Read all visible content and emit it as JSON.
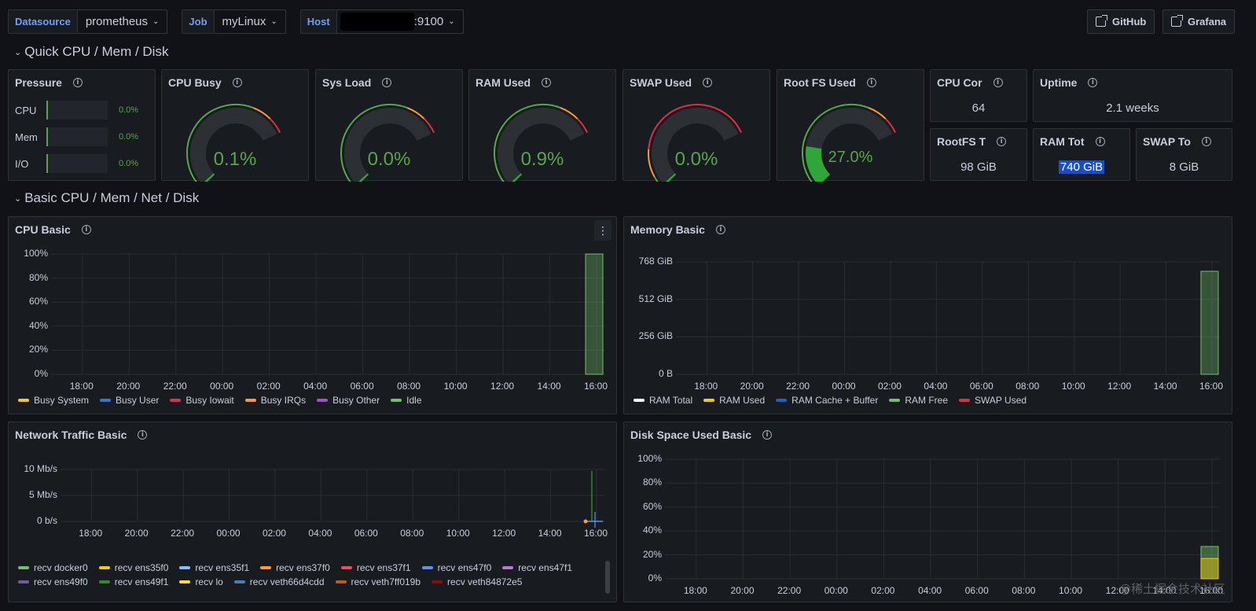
{
  "variables": [
    {
      "label": "Datasource",
      "value": "prometheus"
    },
    {
      "label": "Job",
      "value": "myLinux"
    },
    {
      "label": "Host",
      "value": ":9100"
    }
  ],
  "links": {
    "github": "GitHub",
    "grafana": "Grafana"
  },
  "rows": {
    "quick": "Quick CPU / Mem / Disk",
    "basic": "Basic CPU / Mem / Net / Disk"
  },
  "pressure": {
    "title": "Pressure",
    "items": [
      {
        "label": "CPU",
        "value": "0.0%"
      },
      {
        "label": "Mem",
        "value": "0.0%"
      },
      {
        "label": "I/O",
        "value": "0.0%"
      }
    ]
  },
  "gauges": [
    {
      "title": "CPU Busy",
      "value": "0.1%",
      "percent": 0.1
    },
    {
      "title": "Sys Load",
      "value": "0.0%",
      "percent": 0.0
    },
    {
      "title": "RAM Used",
      "value": "0.9%",
      "percent": 0.9
    },
    {
      "title": "SWAP Used",
      "value": "0.0%",
      "percent": 0.0
    },
    {
      "title": "Root FS Used",
      "value": "27.0%",
      "percent": 27.0
    }
  ],
  "stats": {
    "cpu_cores": {
      "title": "CPU Cor",
      "value": "64"
    },
    "uptime": {
      "title": "Uptime",
      "value": "2.1 weeks"
    },
    "rootfs_total": {
      "title": "RootFS T",
      "value": "98 GiB"
    },
    "ram_total": {
      "title": "RAM Tot",
      "value": "740 GiB"
    },
    "swap_total": {
      "title": "SWAP To",
      "value": "8 GiB"
    }
  },
  "colors": {
    "green": "#56a64b",
    "yellow": "#f2cc0c",
    "red": "#e02f44",
    "blue": "#3274d9",
    "orange": "#ff9830",
    "purple": "#a352cc"
  },
  "chart_data": [
    {
      "type": "area",
      "title": "CPU Basic",
      "x": [
        "18:00",
        "20:00",
        "22:00",
        "00:00",
        "02:00",
        "04:00",
        "06:00",
        "08:00",
        "10:00",
        "12:00",
        "14:00",
        "16:00"
      ],
      "y_ticks": [
        "100%",
        "80%",
        "60%",
        "40%",
        "20%",
        "0%"
      ],
      "ylim": [
        0,
        100
      ],
      "series": [
        {
          "name": "Busy System",
          "color": "#f2cc0c"
        },
        {
          "name": "Busy User",
          "color": "#3274d9"
        },
        {
          "name": "Busy Iowait",
          "color": "#e02f44"
        },
        {
          "name": "Busy IRQs",
          "color": "#ff9830"
        },
        {
          "name": "Busy Other",
          "color": "#a352cc"
        },
        {
          "name": "Idle",
          "color": "#73bf69",
          "last_value": 100
        }
      ]
    },
    {
      "type": "area",
      "title": "Memory Basic",
      "x": [
        "18:00",
        "20:00",
        "22:00",
        "00:00",
        "02:00",
        "04:00",
        "06:00",
        "08:00",
        "10:00",
        "12:00",
        "14:00",
        "16:00"
      ],
      "y_ticks": [
        "768 GiB",
        "512 GiB",
        "256 GiB",
        "0 B"
      ],
      "series": [
        {
          "name": "RAM Total",
          "color": "#ffffff"
        },
        {
          "name": "RAM Used",
          "color": "#f2cc0c"
        },
        {
          "name": "RAM Cache + Buffer",
          "color": "#1f60c4"
        },
        {
          "name": "RAM Free",
          "color": "#73bf69",
          "last_value": 733
        },
        {
          "name": "SWAP Used",
          "color": "#e02f44"
        }
      ]
    },
    {
      "type": "line",
      "title": "Network Traffic Basic",
      "x": [
        "18:00",
        "20:00",
        "22:00",
        "00:00",
        "02:00",
        "04:00",
        "06:00",
        "08:00",
        "10:00",
        "12:00",
        "14:00",
        "16:00"
      ],
      "y_ticks": [
        "10 Mb/s",
        "5 Mb/s",
        "0 b/s"
      ],
      "series": [
        {
          "name": "recv docker0",
          "color": "#73bf69"
        },
        {
          "name": "recv ens35f0",
          "color": "#f2cc0c"
        },
        {
          "name": "recv ens35f1",
          "color": "#8ab8ff"
        },
        {
          "name": "recv ens37f0",
          "color": "#ff9830"
        },
        {
          "name": "recv ens37f1",
          "color": "#f2495c"
        },
        {
          "name": "recv ens47f0",
          "color": "#5794f2"
        },
        {
          "name": "recv ens47f1",
          "color": "#b877d9"
        },
        {
          "name": "recv ens49f0",
          "color": "#705da0"
        },
        {
          "name": "recv ens49f1",
          "color": "#37872d"
        },
        {
          "name": "recv lo",
          "color": "#fade2a"
        },
        {
          "name": "recv veth66d4cdd",
          "color": "#447ebc"
        },
        {
          "name": "recv veth7ff019b",
          "color": "#c15c17"
        },
        {
          "name": "recv veth84872e5",
          "color": "#890f02"
        }
      ]
    },
    {
      "type": "area",
      "title": "Disk Space Used Basic",
      "x": [
        "18:00",
        "20:00",
        "22:00",
        "00:00",
        "02:00",
        "04:00",
        "06:00",
        "08:00",
        "10:00",
        "12:00",
        "14:00",
        "16:00"
      ],
      "y_ticks": [
        "100%",
        "80%",
        "60%",
        "40%",
        "20%",
        "0%"
      ],
      "ylim": [
        0,
        100
      ],
      "series": [
        {
          "name": "",
          "color": "#73bf69",
          "last_value": 27
        },
        {
          "name": "",
          "color": "#f2cc0c",
          "last_value": 17
        }
      ]
    }
  ],
  "watermark": "@稀土掘金技术社区"
}
